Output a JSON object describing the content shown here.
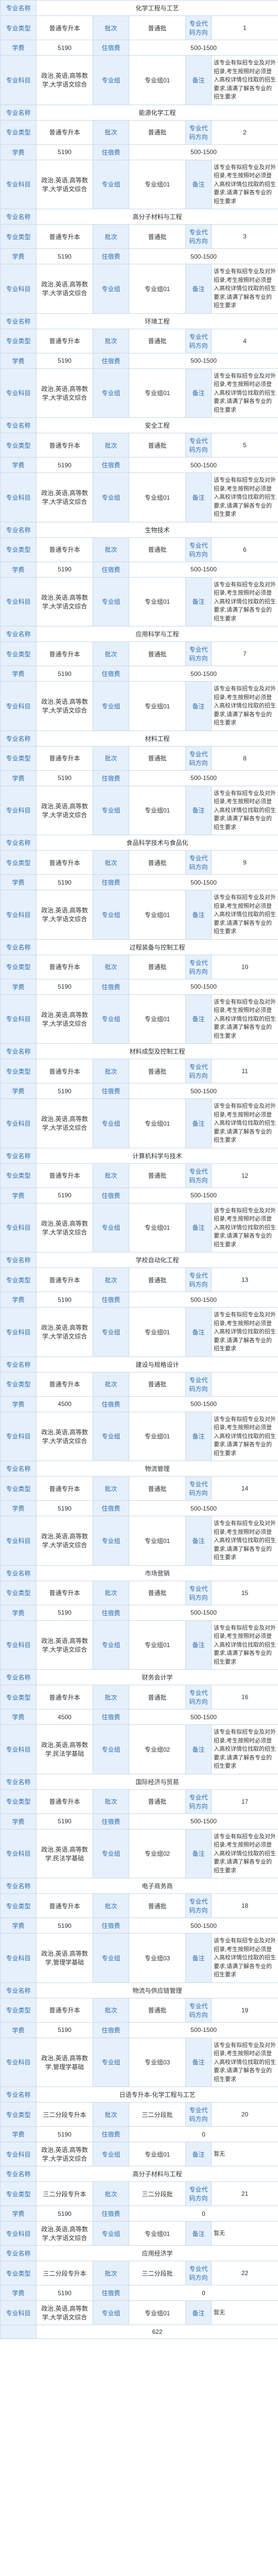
{
  "labels": {
    "major_name": "专业名称",
    "major_type": "专业类型",
    "batch": "批次",
    "major_dir": "专业方向",
    "major_dir_code": "专业代码方向",
    "fee": "学费",
    "fee_label": "住宿费",
    "exam_subj": "专业科目",
    "exam_group": "专业组",
    "remark": "备注"
  },
  "common": {
    "type_val": "普通专升本",
    "batch_val": "普通批",
    "fee_val": "5190",
    "fee_range": "500-1500",
    "subj_a": "政治,英语,高等数学,大学语文综合",
    "group_a": "专业组01",
    "subj_b": "政治,英语,高等数学,民法学基础",
    "group_b": "专业组02",
    "subj_c": "政治,英语,高等数学,管理学基础",
    "group_c": "专业组03",
    "note_long": "该专业有拟招专业及对外招录,考生按照时必须登入高校详情位找取的招生要求,请满了解各专业的招生要求",
    "note_short": "该专业有拟招专业及对外招录,考生按时必须登入高校详情找取的招生要求,请了解各专业的招生要求",
    "type_3plus2": "三二分段专升本",
    "batch_3plus2": "三二分段批",
    "fee_4500": "4500",
    "fee_0": "0",
    "remark_none": "暂无"
  },
  "majors": [
    {
      "name": "化学工程与工艺",
      "code": "1"
    },
    {
      "name": "能源化学工程",
      "code": "2"
    },
    {
      "name": "高分子材料与工程",
      "code": "3"
    },
    {
      "name": "环境工程",
      "code": "4"
    },
    {
      "name": "安全工程",
      "code": "5"
    },
    {
      "name": "生物技术",
      "code": "6"
    },
    {
      "name": "应用科学与工程",
      "code": "7"
    },
    {
      "name": "材料工程",
      "code": "8"
    },
    {
      "name": "食品科学技术与食品化",
      "code": "9"
    },
    {
      "name": "过程装备与控制工程",
      "code": "10"
    },
    {
      "name": "材料成型及控制工程",
      "code": "11"
    },
    {
      "name": "计算机科学与技术",
      "code": "12"
    },
    {
      "name": "学校自动化工程",
      "code": "13"
    },
    {
      "name": "建设与规格设计",
      "code": "",
      "fee": "4500"
    },
    {
      "name": "物流管理",
      "code": "14"
    },
    {
      "name": "市场营销",
      "code": "15"
    },
    {
      "name": "财务会计学",
      "code": "16",
      "fee": "4500",
      "group": "b"
    },
    {
      "name": "国际经济与贸易",
      "code": "17",
      "group": "b"
    },
    {
      "name": "电子商务商",
      "code": "18",
      "group": "c"
    },
    {
      "name": "物流与供应链管理",
      "code": "19",
      "group": "c"
    },
    {
      "name": "日语专升本-化学工程与工艺",
      "code": "20",
      "type": "3plus2"
    },
    {
      "name": "高分子材料与工程",
      "code": "21",
      "type": "3plus2"
    },
    {
      "name": "应用经济学",
      "code": "22",
      "type": "3plus2"
    }
  ],
  "last_total": "622"
}
